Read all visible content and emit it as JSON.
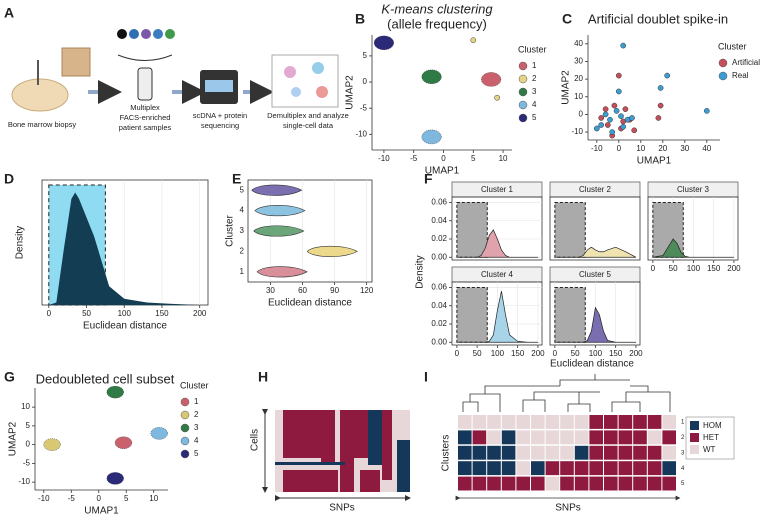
{
  "panel_a": {
    "letter": "A",
    "steps": [
      [
        "Bone marrow biopsy"
      ],
      [
        "Multiplex",
        "FACS-enriched",
        "patient samples"
      ],
      [
        "scDNA + protein",
        "sequencing"
      ],
      [
        "Demultiplex and analyze",
        "single-cell data"
      ]
    ]
  },
  "panel_b": {
    "letter": "B",
    "type": "scatter",
    "title": [
      "K-means clustering",
      "(allele frequency)"
    ],
    "x_label": "UMAP1",
    "y_label": "UMAP2",
    "xlim": [
      -12,
      11.5
    ],
    "ylim": [
      -13,
      9
    ],
    "xticks": [
      -10,
      -5,
      0,
      5,
      10
    ],
    "yticks": [
      -10,
      -5,
      0,
      5
    ],
    "legend_title": "Cluster",
    "series": [
      {
        "name": "1",
        "color": "#c9606b",
        "x": [
          8
        ],
        "y": [
          0.5
        ]
      },
      {
        "name": "2",
        "color": "#e6d486",
        "x": [
          5,
          9
        ],
        "y": [
          8,
          -3
        ]
      },
      {
        "name": "3",
        "color": "#2f7a45",
        "x": [
          -2
        ],
        "y": [
          1
        ]
      },
      {
        "name": "4",
        "color": "#7fb8de",
        "x": [
          -2
        ],
        "y": [
          -10.5
        ]
      },
      {
        "name": "5",
        "color": "#2b2a78",
        "x": [
          -10
        ],
        "y": [
          7.5
        ]
      }
    ]
  },
  "panel_c": {
    "letter": "C",
    "type": "scatter",
    "title": "Artificial doublet spike-in",
    "x_label": "UMAP1",
    "y_label": "UMAP2",
    "xlim": [
      -14,
      46
    ],
    "ylim": [
      -14.5,
      45
    ],
    "xticks": [
      -10,
      0,
      10,
      20,
      30,
      40
    ],
    "yticks": [
      -10,
      0,
      10,
      20,
      30,
      40
    ],
    "legend_title": "Cluster",
    "series": [
      {
        "name": "Artificial",
        "color": "#c44e5c",
        "x": [
          -8,
          -5,
          -2,
          0,
          2,
          5,
          -6,
          3,
          18,
          19,
          7,
          -3,
          1
        ],
        "y": [
          -2,
          -6,
          5,
          22,
          -4,
          -3,
          3,
          3,
          -2,
          5,
          -9,
          -12,
          -8
        ]
      },
      {
        "name": "Real",
        "color": "#3b9dd3",
        "x": [
          -6,
          -4,
          -1,
          1,
          4,
          6,
          -8,
          -3,
          0,
          2,
          -10,
          19,
          22,
          40,
          2
        ],
        "y": [
          0,
          -3,
          2,
          -1,
          -3,
          -2,
          -6,
          -10,
          13,
          -7,
          -8,
          15,
          22,
          2,
          39
        ]
      }
    ]
  },
  "panel_d": {
    "letter": "D",
    "type": "area",
    "x_label": "Euclidean distance",
    "y_label": "Density",
    "xlim": [
      -9,
      211
    ],
    "ylim": [
      0,
      1
    ],
    "xticks": [
      0,
      50,
      100,
      150,
      200
    ],
    "cutoff_range": [
      0,
      75
    ],
    "color": "#123d52",
    "x": [
      0,
      10,
      20,
      30,
      35,
      40,
      50,
      60,
      70,
      80,
      100,
      130,
      160,
      200
    ],
    "values": [
      0,
      0.02,
      0.45,
      0.85,
      0.9,
      0.85,
      0.7,
      0.55,
      0.35,
      0.15,
      0.05,
      0.02,
      0.01,
      0
    ]
  },
  "panel_e": {
    "letter": "E",
    "type": "violin",
    "x_label": "Euclidean distance",
    "y_label": "Cluster",
    "xlim": [
      9,
      125
    ],
    "xticks": [
      30,
      60,
      90,
      120
    ],
    "categories": [
      "1",
      "2",
      "3",
      "4",
      "5"
    ],
    "values": [
      38,
      85,
      35,
      36,
      33
    ],
    "colors": [
      "#d98f9a",
      "#ecd98c",
      "#6aa67a",
      "#8cc3e0",
      "#7b6fb0"
    ]
  },
  "panel_f": {
    "letter": "F",
    "type": "density-facets",
    "x_label": "Euclidean distance",
    "y_label": "Density",
    "xlim": [
      -12,
      210
    ],
    "ylim": [
      -0.003,
      0.066
    ],
    "xticks": [
      0,
      50,
      100,
      150,
      200
    ],
    "yticks": [
      {
        "value": 0,
        "label": "0.00"
      },
      0.02,
      0.04,
      0.06
    ],
    "cutoff_x": [
      0,
      75
    ],
    "cutoff_y": 0.06,
    "x": [
      0,
      25,
      50,
      60,
      70,
      80,
      90,
      100,
      110,
      120,
      130,
      150,
      175,
      200
    ],
    "facets": [
      {
        "title": "Cluster 1",
        "color": "#e0a3ad",
        "values": [
          0,
          0,
          0,
          0.002,
          0.01,
          0.024,
          0.03,
          0.02,
          0.008,
          0.002,
          0,
          0,
          0,
          0
        ]
      },
      {
        "title": "Cluster 2",
        "color": "#efe3b0",
        "values": [
          0,
          0,
          0,
          0,
          0.002,
          0.008,
          0.011,
          0.008,
          0.006,
          0.006,
          0.008,
          0.011,
          0.006,
          0
        ]
      },
      {
        "title": "Cluster 3",
        "color": "#4e8a5a",
        "values": [
          0,
          0.002,
          0.02,
          0.015,
          0.005,
          0.001,
          0,
          0,
          0,
          0,
          0,
          0,
          0,
          0
        ]
      },
      {
        "title": "Cluster 4",
        "color": "#a8d4ea",
        "values": [
          0,
          0,
          0,
          0,
          0,
          0.001,
          0.008,
          0.035,
          0.056,
          0.03,
          0.008,
          0.001,
          0,
          0
        ]
      },
      {
        "title": "Cluster 5",
        "color": "#7a6db0",
        "values": [
          0,
          0,
          0,
          0,
          0,
          0.002,
          0.012,
          0.038,
          0.03,
          0.012,
          0.002,
          0,
          0,
          0
        ]
      }
    ]
  },
  "panel_g": {
    "letter": "G",
    "type": "scatter",
    "title": "Dedoubleted cell subset",
    "x_label": "UMAP1",
    "y_label": "UMAP2",
    "xlim": [
      -11.6,
      12.6
    ],
    "ylim": [
      -12.1,
      15.1
    ],
    "xticks": [
      -10,
      -5,
      0,
      5,
      10
    ],
    "yticks": [
      -10,
      -5,
      0,
      5,
      10
    ],
    "legend_title": "Cluster",
    "series": [
      {
        "name": "1",
        "color": "#c9606b",
        "x": [
          4.5
        ],
        "y": [
          0.5
        ]
      },
      {
        "name": "2",
        "color": "#d8c873",
        "x": [
          -8.5
        ],
        "y": [
          0
        ]
      },
      {
        "name": "3",
        "color": "#2f7a45",
        "x": [
          3
        ],
        "y": [
          14
        ]
      },
      {
        "name": "4",
        "color": "#7fb8de",
        "x": [
          11
        ],
        "y": [
          3
        ]
      },
      {
        "name": "5",
        "color": "#2b2a78",
        "x": [
          3
        ],
        "y": [
          -9
        ]
      }
    ]
  },
  "panel_h": {
    "letter": "H",
    "y_label": "Cells",
    "x_label": "SNPs"
  },
  "panel_i": {
    "letter": "I",
    "y_label": "Clusters",
    "x_label": "SNPs",
    "row_labels": [
      "1",
      "2",
      "3",
      "4",
      "5"
    ],
    "legend": [
      {
        "name": "HOM",
        "color": "#14375a"
      },
      {
        "name": "HET",
        "color": "#8e1a3f"
      },
      {
        "name": "WT",
        "color": "#e8d7d8"
      }
    ],
    "genotypes": [
      [
        "WT",
        "WT",
        "WT",
        "WT",
        "WT",
        "WT",
        "WT",
        "WT",
        "WT",
        "HET",
        "HET",
        "HET",
        "HET",
        "HET",
        "WT"
      ],
      [
        "HOM",
        "HET",
        "WT",
        "HOM",
        "WT",
        "WT",
        "WT",
        "WT",
        "WT",
        "HET",
        "HET",
        "HET",
        "HET",
        "WT",
        "HET"
      ],
      [
        "HOM",
        "HOM",
        "HOM",
        "HOM",
        "WT",
        "WT",
        "WT",
        "WT",
        "HOM",
        "HET",
        "HET",
        "HET",
        "HET",
        "HET",
        "WT"
      ],
      [
        "HOM",
        "HOM",
        "HOM",
        "HOM",
        "WT",
        "HOM",
        "HET",
        "HET",
        "HET",
        "HET",
        "HET",
        "HET",
        "HET",
        "HET",
        "HOM"
      ],
      [
        "HET",
        "HET",
        "HET",
        "HET",
        "HET",
        "HET",
        "WT",
        "HET",
        "HET",
        "HET",
        "HET",
        "HET",
        "HET",
        "HET",
        "HET"
      ]
    ]
  }
}
